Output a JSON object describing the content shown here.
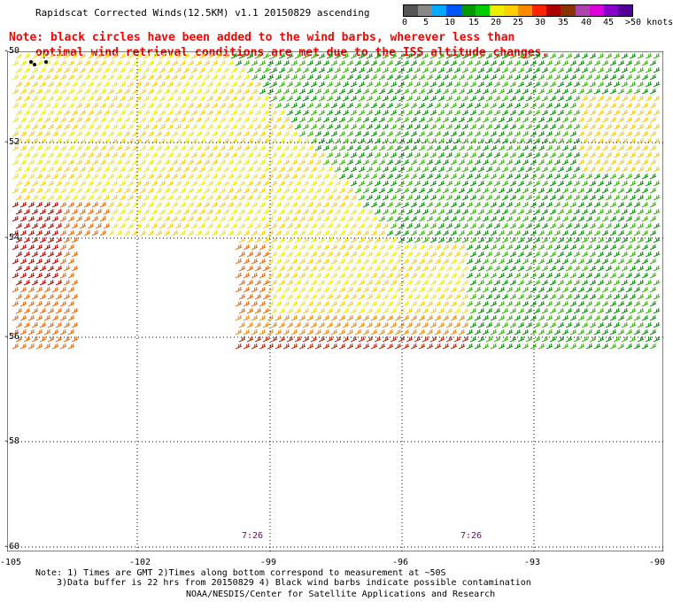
{
  "title": "Rapidscat Corrected Winds(12.5KM) v1.1 20150829 ascending",
  "note_line1": "Note: black circles have been added to the wind barbs, wherever less than",
  "note_line2": "optimal wind retrieval conditions are met due to the ISS altitude changes.",
  "legend": {
    "labels": [
      "0",
      "5",
      "10",
      "15",
      "20",
      "25",
      "30",
      "35",
      "40",
      "45",
      ">50 knots"
    ],
    "colors": [
      "#555555",
      "#888888",
      "#00aaff",
      "#0055ff",
      "#009900",
      "#00cc00",
      "#eeee00",
      "#ffd000",
      "#ff8800",
      "#ff2200",
      "#aa0000",
      "#883300",
      "#aa44aa",
      "#dd00dd",
      "#8800cc",
      "#550099"
    ]
  },
  "map": {
    "lat_labels": [
      "-50",
      "-52",
      "-54",
      "-56",
      "-58",
      "-60"
    ],
    "lon_labels": [
      "-105",
      "-102",
      "-99",
      "-96",
      "-93",
      "-90"
    ],
    "time_labels": [
      "7:26",
      "7:26"
    ]
  },
  "footer": {
    "line1": "Note: 1) Times are GMT 2)Times along bottom correspond to measurement at ~50S",
    "line2": "3)Data buffer is 22 hrs from 20150829 4) Black wind barbs indicate possible contamination",
    "line3": "NOAA/NESDIS/Center for Satellite Applications and Research"
  }
}
